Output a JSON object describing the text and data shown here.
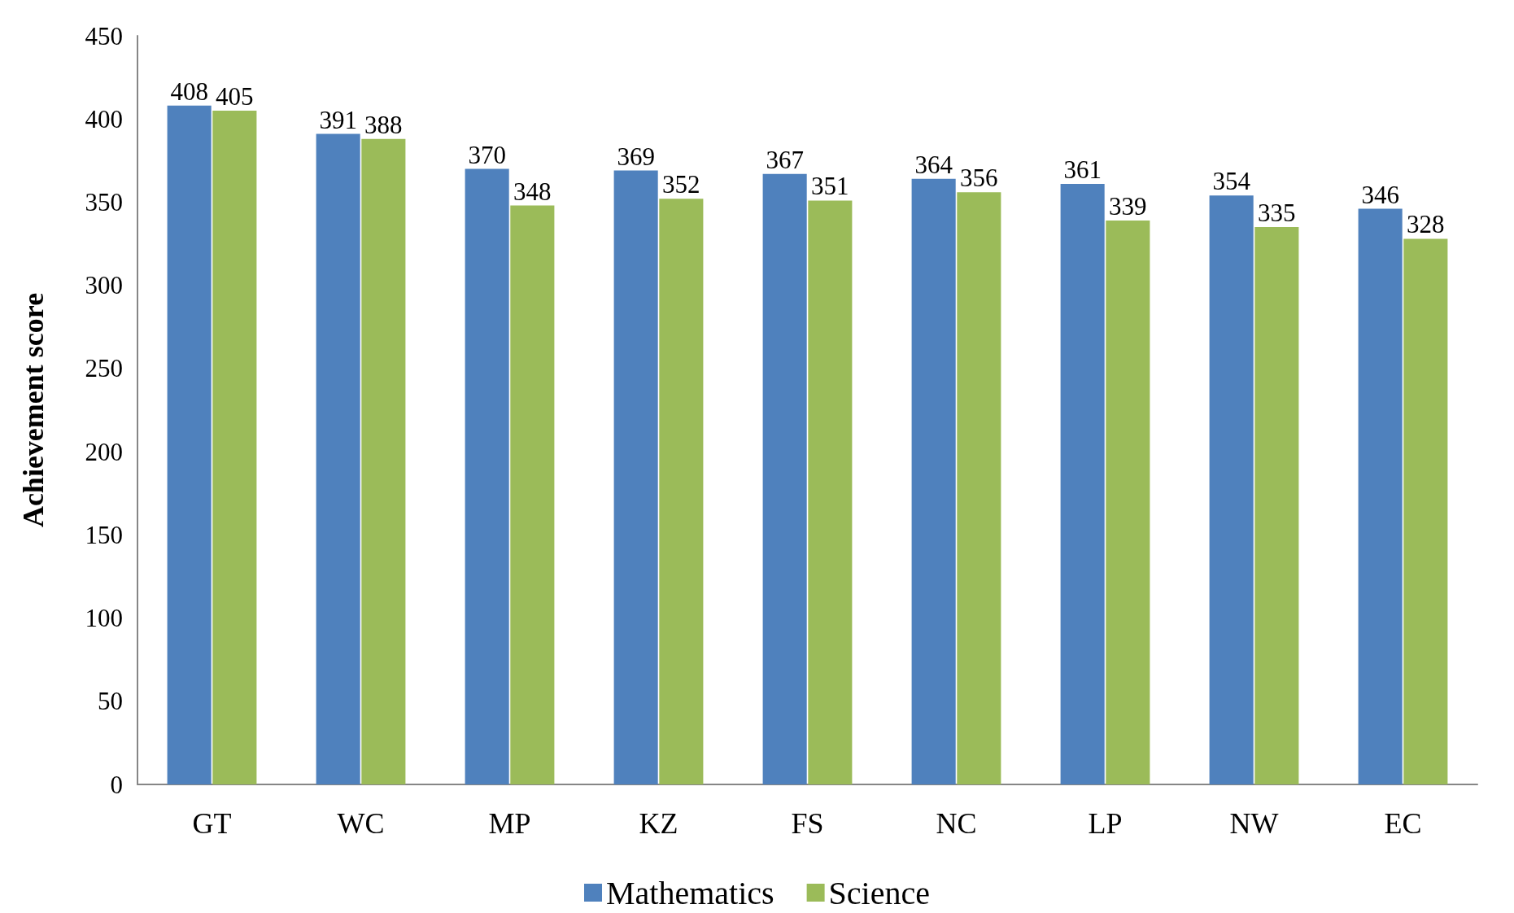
{
  "chart_data": {
    "type": "bar",
    "ylabel": "Achievement score",
    "categories": [
      "GT",
      "WC",
      "MP",
      "KZ",
      "FS",
      "NC",
      "LP",
      "NW",
      "EC"
    ],
    "series": [
      {
        "name": "Mathematics",
        "color": "#4f81bd",
        "values": [
          408,
          391,
          370,
          369,
          367,
          364,
          361,
          354,
          346
        ]
      },
      {
        "name": "Science",
        "color": "#9bbb59",
        "values": [
          405,
          388,
          348,
          352,
          351,
          356,
          339,
          335,
          328
        ]
      }
    ],
    "ylim": [
      0,
      450
    ],
    "yticks": [
      0,
      50,
      100,
      150,
      200,
      250,
      300,
      350,
      400,
      450
    ],
    "data_labels": true,
    "grid": false,
    "legend": "bottom"
  }
}
